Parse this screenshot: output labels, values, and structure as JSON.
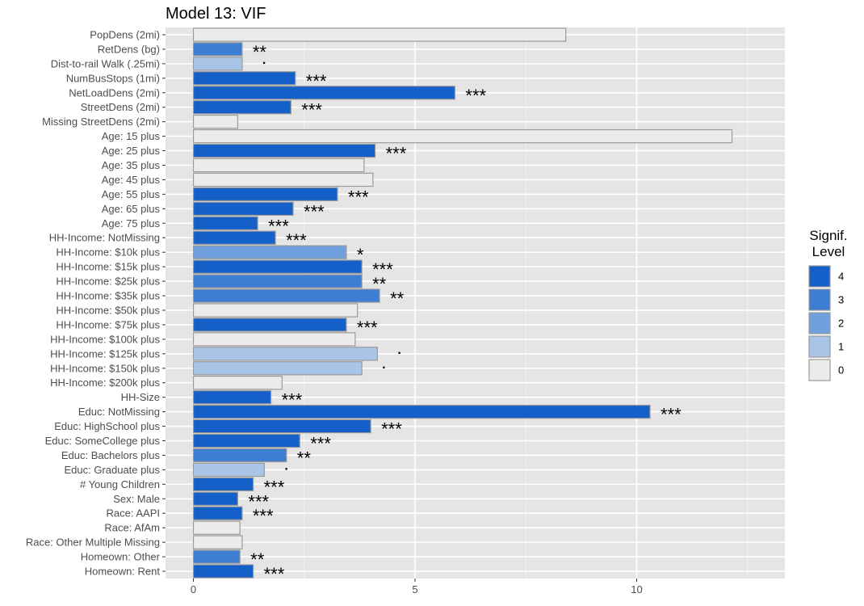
{
  "chart_data": {
    "type": "bar",
    "orientation": "horizontal",
    "title": "Model 13: VIF",
    "xlim": [
      0,
      13.35
    ],
    "x_ticks": [
      0,
      5,
      10
    ],
    "grid": true,
    "legend": {
      "title_lines": [
        "Signif.",
        "Level"
      ],
      "position": "right",
      "levels": [
        {
          "label": "4",
          "color": "#1560c8"
        },
        {
          "label": "3",
          "color": "#3e7ed2"
        },
        {
          "label": "2",
          "color": "#6f9fdc"
        },
        {
          "label": "1",
          "color": "#a8c5e8"
        },
        {
          "label": "0",
          "color": "#ebebeb"
        }
      ]
    },
    "categories": [
      "PopDens (2mi)",
      "RetDens (bg)",
      "Dist-to-rail Walk (.25mi)",
      "NumBusStops (1mi)",
      "NetLoadDens (2mi)",
      "StreetDens (2mi)",
      "Missing StreetDens (2mi)",
      "Age: 15 plus",
      "Age: 25 plus",
      "Age: 35 plus",
      "Age: 45 plus",
      "Age: 55 plus",
      "Age: 65 plus",
      "Age: 75 plus",
      "HH-Income: NotMissing",
      "HH-Income:  $10k plus",
      "HH-Income:  $15k plus",
      "HH-Income:  $25k plus",
      "HH-Income:  $35k plus",
      "HH-Income:  $50k plus",
      "HH-Income:  $75k plus",
      "HH-Income: $100k plus",
      "HH-Income: $125k plus",
      "HH-Income: $150k plus",
      "HH-Income: $200k plus",
      "HH-Size",
      "Educ: NotMissing",
      "Educ: HighSchool plus",
      "Educ: SomeCollege plus",
      "Educ: Bachelors plus",
      "Educ: Graduate plus",
      "# Young Children",
      "Sex: Male",
      "Race: AAPI",
      "Race: AfAm",
      "Race: Other Multiple Missing",
      "Homeown: Other",
      "Homeown: Rent"
    ],
    "values": [
      8.4,
      1.1,
      1.1,
      2.3,
      5.9,
      2.2,
      1.0,
      12.15,
      4.1,
      3.85,
      4.05,
      3.25,
      2.25,
      1.45,
      1.85,
      3.45,
      3.8,
      3.8,
      4.2,
      3.7,
      3.45,
      3.65,
      4.15,
      3.8,
      2.0,
      1.75,
      10.3,
      4.0,
      2.4,
      2.1,
      1.6,
      1.35,
      1.0,
      1.1,
      1.05,
      1.1,
      1.05,
      1.35
    ],
    "signif_level": [
      0,
      3,
      1,
      4,
      4,
      4,
      0,
      0,
      4,
      0,
      0,
      4,
      4,
      4,
      4,
      2,
      4,
      3,
      3,
      0,
      4,
      0,
      1,
      1,
      0,
      4,
      4,
      4,
      4,
      3,
      1,
      4,
      4,
      4,
      0,
      0,
      3,
      4
    ],
    "stars": [
      "",
      "**",
      ".",
      "***",
      "***",
      "***",
      "",
      "",
      "***",
      "",
      "",
      "***",
      "***",
      "***",
      "***",
      "*",
      "***",
      "**",
      "**",
      "",
      "***",
      "",
      ".",
      ".",
      "",
      "***",
      "***",
      "***",
      "***",
      "**",
      ".",
      "***",
      "***",
      "***",
      "",
      "",
      "**",
      "***"
    ]
  }
}
